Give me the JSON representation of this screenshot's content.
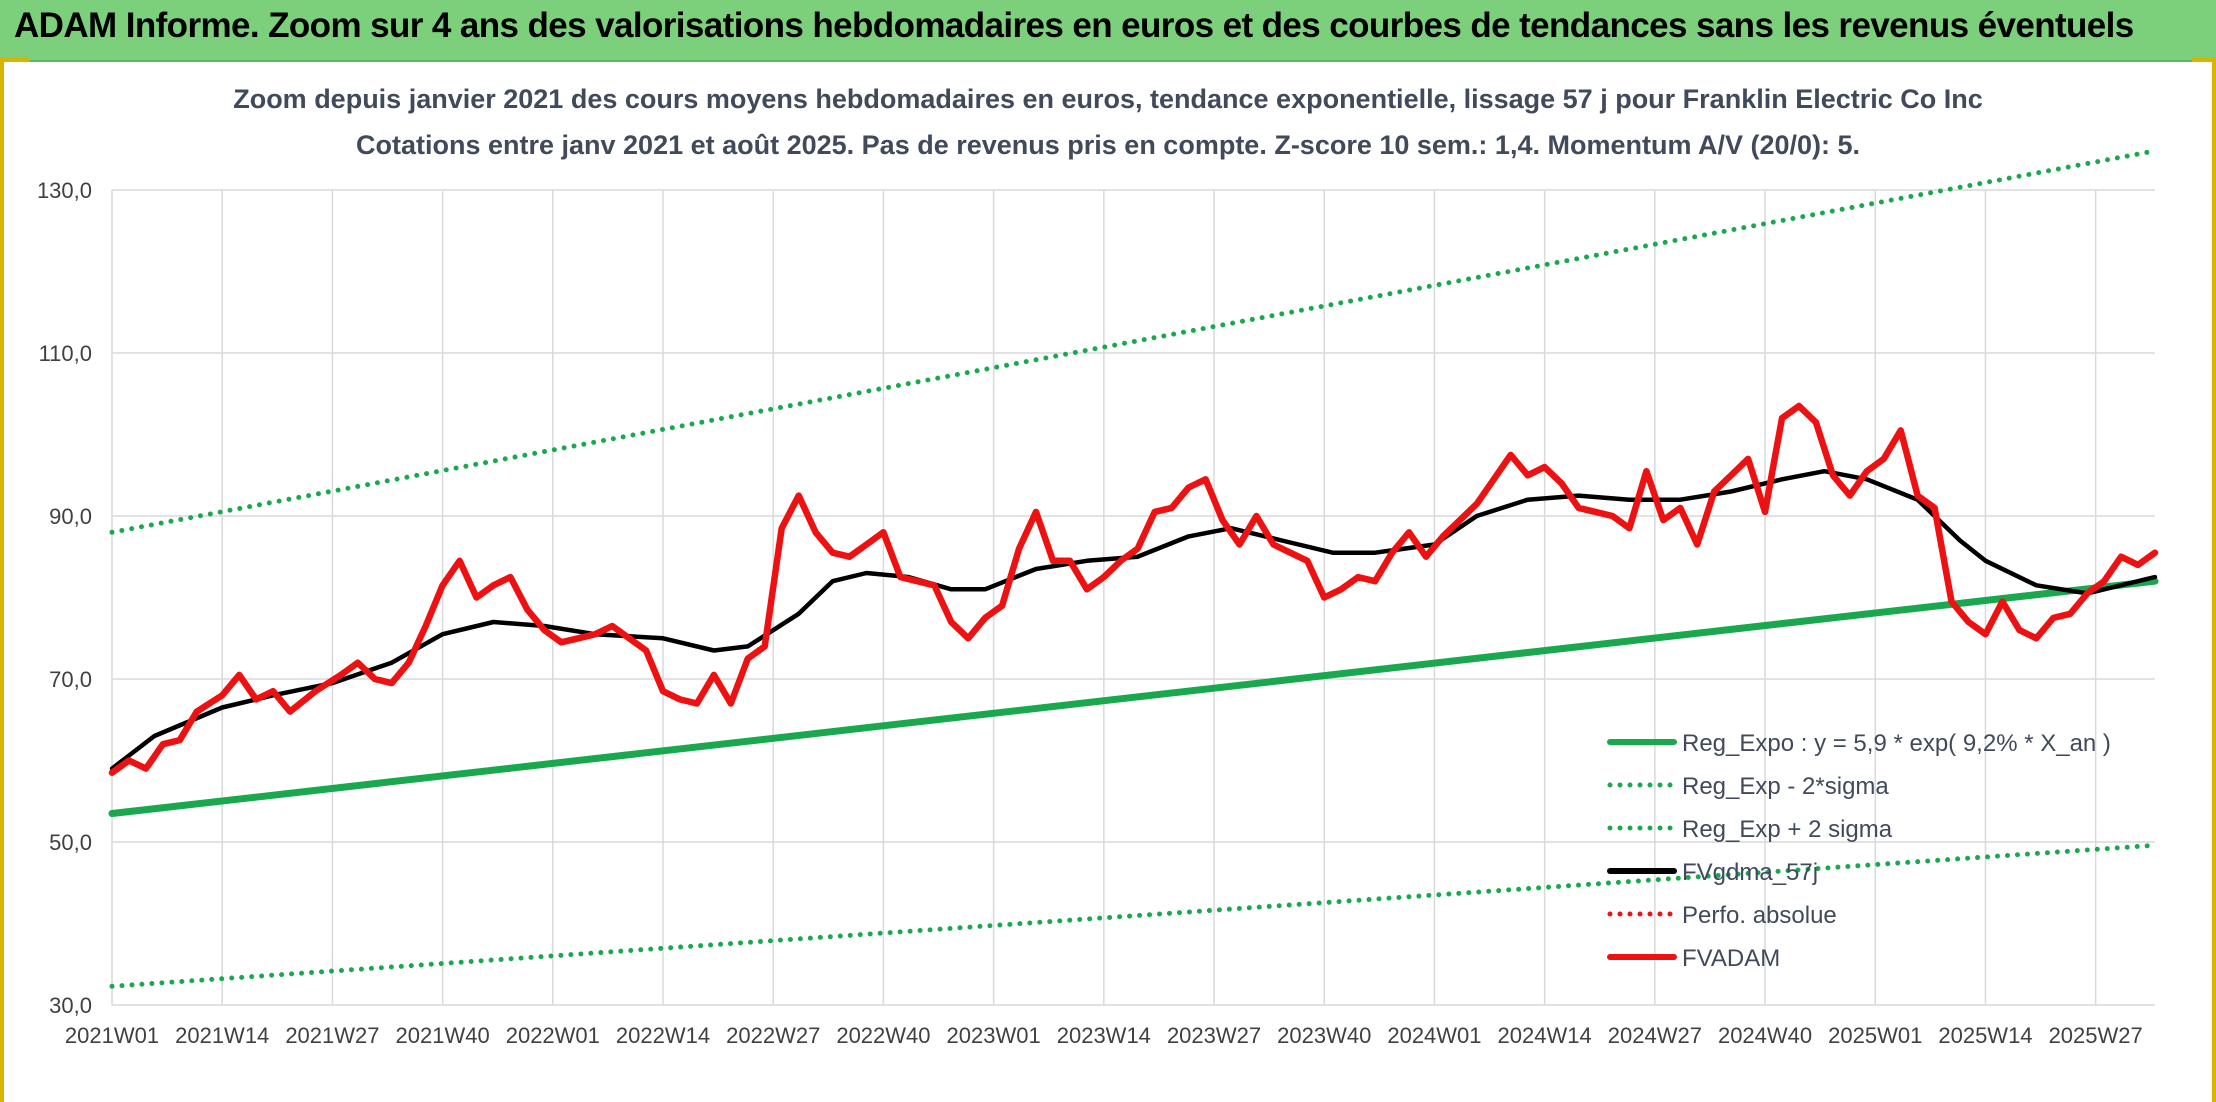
{
  "banner": {
    "title": "ADAM Informe. Zoom sur 4 ans des valorisations hebdomadaires en euros et des courbes de tendances sans les revenus éventuels"
  },
  "colors": {
    "banner_bg": "#7ccf7b",
    "reg_green": "#1aa84f",
    "adam_red": "#ee1111",
    "ma_black": "#000000",
    "grid": "#d9d9d9",
    "axis_text": "#404040"
  },
  "chart_data": {
    "type": "line",
    "title": "Zoom depuis janvier 2021 des cours moyens hebdomadaires en euros, tendance exponentielle, lissage 57 j pour Franklin Electric Co Inc",
    "subtitle": "Cotations entre janv 2021 et août 2025. Pas de revenus pris en compte. Z-score 10 sem.: 1,4. Momentum A/V (20/0): 5.",
    "x_ticks": [
      "2021W01",
      "2021W14",
      "2021W27",
      "2021W40",
      "2022W01",
      "2022W14",
      "2022W27",
      "2022W40",
      "2023W01",
      "2023W14",
      "2023W27",
      "2023W40",
      "2024W01",
      "2024W14",
      "2024W27",
      "2024W40",
      "2025W01",
      "2025W14",
      "2025W27"
    ],
    "x_range": [
      "2021W01",
      "2025W34"
    ],
    "y_ticks": [
      "30,0",
      "50,0",
      "70,0",
      "90,0",
      "110,0",
      "130,0"
    ],
    "ylim": [
      30,
      130
    ],
    "grid": true,
    "legend_position": "bottom-right",
    "legend": [
      {
        "label": "Reg_Expo : y = 5,9 * exp( 9,2% *  X_an )",
        "color": "#1aa84f",
        "style": "solid"
      },
      {
        "label": "Reg_Exp - 2*sigma",
        "color": "#1aa84f",
        "style": "dotted"
      },
      {
        "label": "Reg_Exp + 2 sigma",
        "color": "#1aa84f",
        "style": "dotted"
      },
      {
        "label": "FVgdma_57j",
        "color": "#000000",
        "style": "solid"
      },
      {
        "label": "Perfo. absolue",
        "color": "#ee1111",
        "style": "dotted"
      },
      {
        "label": "FVADAM",
        "color": "#ee1111",
        "style": "solid"
      }
    ],
    "series": [
      {
        "name": "Reg_Expo : y = 5,9 * exp( 9,2% *  X_an )",
        "x": [
          "2021W01",
          "2025W34"
        ],
        "values": [
          53.5,
          82.0
        ]
      },
      {
        "name": "Reg_Exp - 2*sigma",
        "x": [
          "2021W01",
          "2025W34"
        ],
        "values": [
          32.3,
          49.6
        ]
      },
      {
        "name": "Reg_Exp + 2 sigma",
        "x": [
          "2021W01",
          "2025W34"
        ],
        "values": [
          88.0,
          134.8
        ]
      },
      {
        "name": "FVgdma_57j",
        "x": [
          "2021W01",
          "2021W06",
          "2021W14",
          "2021W20",
          "2021W27",
          "2021W34",
          "2021W40",
          "2021W46",
          "2021W52",
          "2022W06",
          "2022W14",
          "2022W20",
          "2022W24",
          "2022W30",
          "2022W34",
          "2022W38",
          "2022W43",
          "2022W48",
          "2022W52",
          "2023W06",
          "2023W12",
          "2023W18",
          "2023W24",
          "2023W29",
          "2023W35",
          "2023W41",
          "2023W46",
          "2024W01",
          "2024W06",
          "2024W12",
          "2024W18",
          "2024W24",
          "2024W30",
          "2024W36",
          "2024W42",
          "2024W47",
          "2024W52",
          "2025W06",
          "2025W11",
          "2025W14",
          "2025W20",
          "2025W26",
          "2025W34"
        ],
        "values": [
          59.0,
          63.0,
          66.5,
          68.0,
          69.5,
          72.0,
          75.5,
          77.0,
          76.5,
          75.5,
          75.0,
          73.5,
          74.0,
          78.0,
          82.0,
          83.0,
          82.5,
          81.0,
          81.0,
          83.5,
          84.5,
          85.0,
          87.5,
          88.5,
          87.0,
          85.5,
          85.5,
          86.5,
          90.0,
          92.0,
          92.5,
          92.0,
          92.0,
          93.0,
          94.5,
          95.5,
          94.5,
          92.0,
          87.0,
          84.5,
          81.5,
          80.5,
          82.5
        ]
      },
      {
        "name": "Perfo. absolue",
        "x": [],
        "values": []
      },
      {
        "name": "FVADAM",
        "x": [
          "2021W01",
          "2021W03",
          "2021W05",
          "2021W07",
          "2021W09",
          "2021W11",
          "2021W14",
          "2021W16",
          "2021W18",
          "2021W20",
          "2021W22",
          "2021W25",
          "2021W28",
          "2021W30",
          "2021W32",
          "2021W34",
          "2021W36",
          "2021W38",
          "2021W40",
          "2021W42",
          "2021W44",
          "2021W46",
          "2021W48",
          "2021W50",
          "2021W52",
          "2022W02",
          "2022W04",
          "2022W06",
          "2022W08",
          "2022W10",
          "2022W12",
          "2022W14",
          "2022W16",
          "2022W18",
          "2022W20",
          "2022W22",
          "2022W24",
          "2022W26",
          "2022W28",
          "2022W30",
          "2022W32",
          "2022W34",
          "2022W36",
          "2022W38",
          "2022W40",
          "2022W42",
          "2022W44",
          "2022W46",
          "2022W48",
          "2022W50",
          "2022W52",
          "2023W02",
          "2023W04",
          "2023W06",
          "2023W08",
          "2023W10",
          "2023W12",
          "2023W14",
          "2023W16",
          "2023W18",
          "2023W20",
          "2023W22",
          "2023W24",
          "2023W26",
          "2023W28",
          "2023W30",
          "2023W32",
          "2023W34",
          "2023W36",
          "2023W38",
          "2023W40",
          "2023W42",
          "2023W44",
          "2023W46",
          "2023W48",
          "2023W50",
          "2023W52",
          "2024W02",
          "2024W04",
          "2024W06",
          "2024W08",
          "2024W10",
          "2024W12",
          "2024W14",
          "2024W16",
          "2024W18",
          "2024W20",
          "2024W22",
          "2024W24",
          "2024W26",
          "2024W28",
          "2024W30",
          "2024W32",
          "2024W34",
          "2024W36",
          "2024W38",
          "2024W40",
          "2024W42",
          "2024W44",
          "2024W46",
          "2024W48",
          "2024W50",
          "2024W52",
          "2025W02",
          "2025W04",
          "2025W06",
          "2025W08",
          "2025W10",
          "2025W12",
          "2025W14",
          "2025W16",
          "2025W18",
          "2025W20",
          "2025W22",
          "2025W24",
          "2025W26",
          "2025W28",
          "2025W30",
          "2025W32",
          "2025W34"
        ],
        "values": [
          58.5,
          60.0,
          59.0,
          62.0,
          62.5,
          66.0,
          68.0,
          70.5,
          67.5,
          68.5,
          66.0,
          68.5,
          70.5,
          72.0,
          70.0,
          69.5,
          72.0,
          76.5,
          81.5,
          84.5,
          80.0,
          81.5,
          82.5,
          78.5,
          76.0,
          74.5,
          75.0,
          75.5,
          76.5,
          75.0,
          73.5,
          68.5,
          67.5,
          67.0,
          70.5,
          67.0,
          72.5,
          74.0,
          88.5,
          92.5,
          88.0,
          85.5,
          85.0,
          86.5,
          88.0,
          82.5,
          82.0,
          81.5,
          77.0,
          75.0,
          77.5,
          79.0,
          86.0,
          90.5,
          84.5,
          84.5,
          81.0,
          82.5,
          84.5,
          86.0,
          90.5,
          91.0,
          93.5,
          94.5,
          89.5,
          86.5,
          90.0,
          86.5,
          85.5,
          84.5,
          80.0,
          81.0,
          82.5,
          82.0,
          85.5,
          88.0,
          85.0,
          87.5,
          89.5,
          91.5,
          94.5,
          97.5,
          95.0,
          96.0,
          94.0,
          91.0,
          90.5,
          90.0,
          88.5,
          95.5,
          89.5,
          91.0,
          86.5,
          93.0,
          95.0,
          97.0,
          90.5,
          102.0,
          103.5,
          101.5,
          95.0,
          92.5,
          95.5,
          97.0,
          100.5,
          92.5,
          91.0,
          79.5,
          77.0,
          75.5,
          79.5,
          76.0,
          75.0,
          77.5,
          78.0,
          80.5,
          82.0,
          85.0,
          84.0,
          85.5
        ]
      }
    ]
  }
}
